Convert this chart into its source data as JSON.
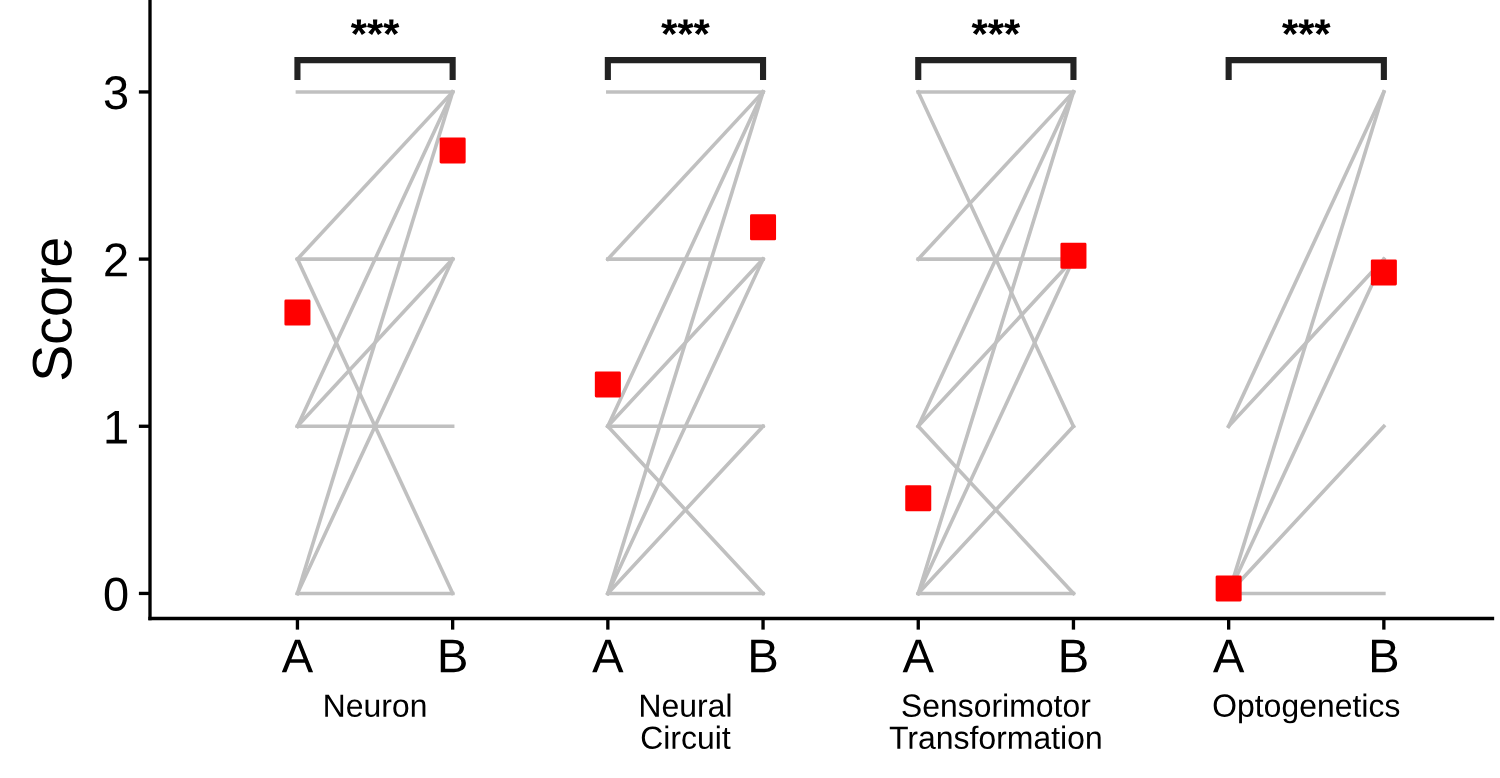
{
  "chart_data": {
    "type": "line",
    "ylabel": "Score",
    "categories": [
      "A",
      "B",
      "A",
      "B",
      "A",
      "B",
      "A",
      "B"
    ],
    "ylim": [
      -0.15,
      3.55
    ],
    "yticks": [
      0,
      1,
      2,
      3
    ],
    "grid": false,
    "line_style": "solid",
    "annotations": [
      "Neuron",
      "Neural\nCircuit",
      "Sensorimotor\nTransformation",
      "Optogenetics",
      "***",
      "***",
      "***",
      "***"
    ],
    "series": [
      {
        "color": "#c0c0c0",
        "values": [
          3,
          3,
          null,
          null,
          null,
          null,
          null,
          null
        ]
      },
      {
        "color": "#c0c0c0",
        "values": [
          2,
          3,
          null,
          null,
          null,
          null,
          null,
          null
        ]
      },
      {
        "color": "#c0c0c0",
        "values": [
          2,
          2,
          null,
          null,
          null,
          null,
          null,
          null
        ]
      },
      {
        "color": "#c0c0c0",
        "values": [
          2,
          0,
          null,
          null,
          null,
          null,
          null,
          null
        ]
      },
      {
        "color": "#c0c0c0",
        "values": [
          1,
          3,
          null,
          null,
          null,
          null,
          null,
          null
        ]
      },
      {
        "color": "#c0c0c0",
        "values": [
          1,
          2,
          null,
          null,
          null,
          null,
          null,
          null
        ]
      },
      {
        "color": "#c0c0c0",
        "values": [
          1,
          1,
          null,
          null,
          null,
          null,
          null,
          null
        ]
      },
      {
        "color": "#c0c0c0",
        "values": [
          0,
          3,
          null,
          null,
          null,
          null,
          null,
          null
        ]
      },
      {
        "color": "#c0c0c0",
        "values": [
          0,
          2,
          null,
          null,
          null,
          null,
          null,
          null
        ]
      },
      {
        "color": "#c0c0c0",
        "values": [
          0,
          0,
          null,
          null,
          null,
          null,
          null,
          null
        ]
      },
      {
        "color": "#c0c0c0",
        "values": [
          null,
          null,
          3,
          3,
          null,
          null,
          null,
          null
        ]
      },
      {
        "color": "#c0c0c0",
        "values": [
          null,
          null,
          2,
          3,
          null,
          null,
          null,
          null
        ]
      },
      {
        "color": "#c0c0c0",
        "values": [
          null,
          null,
          2,
          2,
          null,
          null,
          null,
          null
        ]
      },
      {
        "color": "#c0c0c0",
        "values": [
          null,
          null,
          1,
          3,
          null,
          null,
          null,
          null
        ]
      },
      {
        "color": "#c0c0c0",
        "values": [
          null,
          null,
          1,
          2,
          null,
          null,
          null,
          null
        ]
      },
      {
        "color": "#c0c0c0",
        "values": [
          null,
          null,
          1,
          1,
          null,
          null,
          null,
          null
        ]
      },
      {
        "color": "#c0c0c0",
        "values": [
          null,
          null,
          1,
          0,
          null,
          null,
          null,
          null
        ]
      },
      {
        "color": "#c0c0c0",
        "values": [
          null,
          null,
          0,
          3,
          null,
          null,
          null,
          null
        ]
      },
      {
        "color": "#c0c0c0",
        "values": [
          null,
          null,
          0,
          2,
          null,
          null,
          null,
          null
        ]
      },
      {
        "color": "#c0c0c0",
        "values": [
          null,
          null,
          0,
          1,
          null,
          null,
          null,
          null
        ]
      },
      {
        "color": "#c0c0c0",
        "values": [
          null,
          null,
          0,
          0,
          null,
          null,
          null,
          null
        ]
      },
      {
        "color": "#c0c0c0",
        "values": [
          null,
          null,
          null,
          null,
          3,
          3,
          null,
          null
        ]
      },
      {
        "color": "#c0c0c0",
        "values": [
          null,
          null,
          null,
          null,
          3,
          1,
          null,
          null
        ]
      },
      {
        "color": "#c0c0c0",
        "values": [
          null,
          null,
          null,
          null,
          2,
          3,
          null,
          null
        ]
      },
      {
        "color": "#c0c0c0",
        "values": [
          null,
          null,
          null,
          null,
          2,
          2,
          null,
          null
        ]
      },
      {
        "color": "#c0c0c0",
        "values": [
          null,
          null,
          null,
          null,
          1,
          3,
          null,
          null
        ]
      },
      {
        "color": "#c0c0c0",
        "values": [
          null,
          null,
          null,
          null,
          1,
          2,
          null,
          null
        ]
      },
      {
        "color": "#c0c0c0",
        "values": [
          null,
          null,
          null,
          null,
          1,
          0,
          null,
          null
        ]
      },
      {
        "color": "#c0c0c0",
        "values": [
          null,
          null,
          null,
          null,
          0,
          3,
          null,
          null
        ]
      },
      {
        "color": "#c0c0c0",
        "values": [
          null,
          null,
          null,
          null,
          0,
          2,
          null,
          null
        ]
      },
      {
        "color": "#c0c0c0",
        "values": [
          null,
          null,
          null,
          null,
          0,
          1,
          null,
          null
        ]
      },
      {
        "color": "#c0c0c0",
        "values": [
          null,
          null,
          null,
          null,
          0,
          0,
          null,
          null
        ]
      },
      {
        "color": "#c0c0c0",
        "values": [
          null,
          null,
          null,
          null,
          null,
          null,
          1,
          3
        ]
      },
      {
        "color": "#c0c0c0",
        "values": [
          null,
          null,
          null,
          null,
          null,
          null,
          1,
          2
        ]
      },
      {
        "color": "#c0c0c0",
        "values": [
          null,
          null,
          null,
          null,
          null,
          null,
          0,
          3
        ]
      },
      {
        "color": "#c0c0c0",
        "values": [
          null,
          null,
          null,
          null,
          null,
          null,
          0,
          2
        ]
      },
      {
        "color": "#c0c0c0",
        "values": [
          null,
          null,
          null,
          null,
          null,
          null,
          0,
          1
        ]
      },
      {
        "color": "#c0c0c0",
        "values": [
          null,
          null,
          null,
          null,
          null,
          null,
          0,
          0
        ]
      },
      {
        "type": "scatter",
        "marker": "square",
        "color": "#ff0000",
        "values": [
          1.68,
          2.65,
          1.25,
          2.19,
          0.57,
          2.02,
          0.03,
          1.92
        ]
      }
    ]
  }
}
